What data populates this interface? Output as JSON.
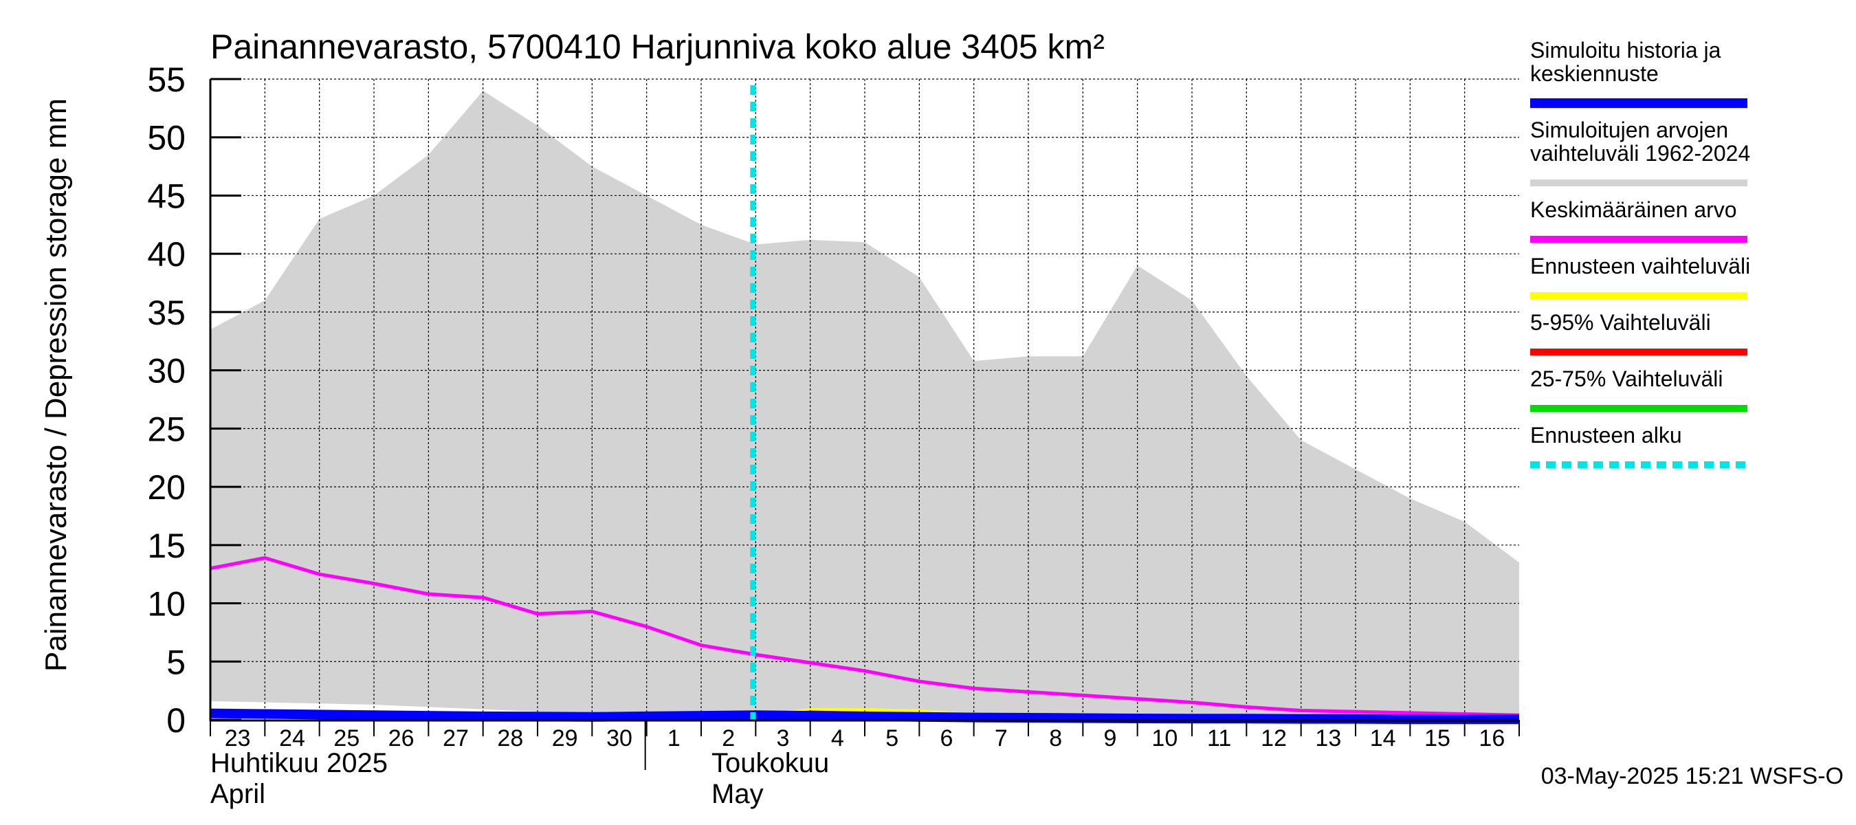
{
  "chart_data": {
    "type": "area",
    "title": "Painannevarasto, 5700410 Harjunniva koko alue 3405 km²",
    "ylabel": "Painannevarasto / Depression storage    mm",
    "ylim": [
      0,
      55
    ],
    "yticks": [
      0,
      5,
      10,
      15,
      20,
      25,
      30,
      35,
      40,
      45,
      50,
      55
    ],
    "grid": true,
    "legend_position": "right",
    "x_day_labels": [
      "23",
      "24",
      "25",
      "26",
      "27",
      "28",
      "29",
      "30",
      "1",
      "2",
      "3",
      "4",
      "5",
      "6",
      "7",
      "8",
      "9",
      "10",
      "11",
      "12",
      "13",
      "14",
      "15",
      "16"
    ],
    "month_labels": [
      {
        "fi": "Huhtikuu  2025",
        "en": "April"
      },
      {
        "fi": "Toukokuu",
        "en": "May"
      }
    ],
    "x_dates": [
      "2025-04-23",
      "2025-04-24",
      "2025-04-25",
      "2025-04-26",
      "2025-04-27",
      "2025-04-28",
      "2025-04-29",
      "2025-04-30",
      "2025-05-01",
      "2025-05-02",
      "2025-05-03",
      "2025-05-04",
      "2025-05-05",
      "2025-05-06",
      "2025-05-07",
      "2025-05-08",
      "2025-05-09",
      "2025-05-10",
      "2025-05-11",
      "2025-05-12",
      "2025-05-13",
      "2025-05-14",
      "2025-05-15",
      "2025-05-16",
      "2025-05-17"
    ],
    "forecast_start": "2025-05-03",
    "series": [
      {
        "name": "Simuloitujen arvojen vaihteluväli 1962-2024",
        "kind": "band",
        "color": "#d3d3d3",
        "upper": [
          33.5,
          36.0,
          43.0,
          45.0,
          48.5,
          54.0,
          51.0,
          47.5,
          45.0,
          42.5,
          40.8,
          41.2,
          41.0,
          38.0,
          30.8,
          31.2,
          31.2,
          39.0,
          36.0,
          29.5,
          24.0,
          21.5,
          19.0,
          17.0,
          13.5
        ],
        "lower": [
          1.6,
          1.5,
          1.4,
          1.3,
          1.1,
          0.9,
          0.7,
          0.5,
          0.4,
          0.4,
          0.3,
          0.3,
          0.3,
          0.3,
          0.3,
          0.3,
          0.3,
          0.3,
          0.3,
          0.3,
          0.3,
          0.3,
          0.3,
          0.3,
          0.3
        ]
      },
      {
        "name": "Keskimääräinen arvo",
        "kind": "line",
        "color": "#ff00ff",
        "values": [
          13.0,
          13.9,
          12.5,
          11.7,
          10.8,
          10.5,
          9.1,
          9.3,
          8.0,
          6.4,
          5.6,
          4.9,
          4.2,
          3.3,
          2.7,
          2.4,
          2.1,
          1.8,
          1.5,
          1.1,
          0.8,
          0.7,
          0.6,
          0.5,
          0.4
        ]
      },
      {
        "name": "Ennusteen vaihteluväli",
        "kind": "forecast_band",
        "color": "#ffff00",
        "start_index": 10,
        "upper": [
          0.5,
          1.0,
          1.0,
          0.9,
          0.6,
          0.3,
          0.2,
          0.15,
          0.1,
          0.1,
          0.1,
          0.1,
          0.1,
          0.1,
          0.1
        ],
        "lower": [
          0.3,
          0.3,
          0.3,
          0.3,
          0.25,
          0.2,
          0.15,
          0.1,
          0.1,
          0.1,
          0.05,
          0.05,
          0.05,
          0.05,
          0.05
        ]
      },
      {
        "name": "5-95% Vaihteluväli",
        "kind": "forecast_band",
        "color": "#ff0000",
        "start_index": 10,
        "upper": [
          0.45,
          0.8,
          0.7,
          0.6,
          0.4,
          0.25,
          0.2,
          0.15,
          0.1,
          0.1,
          0.1,
          0.1,
          0.1,
          0.1,
          0.1
        ],
        "lower": [
          0.3,
          0.3,
          0.3,
          0.3,
          0.25,
          0.2,
          0.15,
          0.1,
          0.1,
          0.1,
          0.05,
          0.05,
          0.05,
          0.05,
          0.05
        ]
      },
      {
        "name": "25-75% Vaihteluväli",
        "kind": "forecast_band",
        "color": "#00dd00",
        "start_index": 10,
        "upper": [
          0.4,
          0.5,
          0.5,
          0.45,
          0.35,
          0.25,
          0.2,
          0.15,
          0.1,
          0.1,
          0.1,
          0.1,
          0.1,
          0.1,
          0.1
        ],
        "lower": [
          0.3,
          0.3,
          0.3,
          0.3,
          0.25,
          0.2,
          0.15,
          0.1,
          0.1,
          0.1,
          0.05,
          0.05,
          0.05,
          0.05,
          0.05
        ]
      },
      {
        "name": "Simuloitu historia ja keskiennuste",
        "kind": "line",
        "color": "#0000ff",
        "values": [
          0.55,
          0.5,
          0.45,
          0.4,
          0.35,
          0.3,
          0.28,
          0.25,
          0.3,
          0.35,
          0.4,
          0.35,
          0.3,
          0.25,
          0.2,
          0.18,
          0.15,
          0.12,
          0.1,
          0.1,
          0.08,
          0.08,
          0.05,
          0.05,
          0.05
        ]
      }
    ],
    "legend": [
      {
        "label_lines": [
          "Simuloitu historia ja",
          "keskiennuste"
        ],
        "color": "#0000ff",
        "style": "solid"
      },
      {
        "label_lines": [
          "Simuloitujen arvojen",
          "vaihteluväli 1962-2024"
        ],
        "color": "#d3d3d3",
        "style": "solid"
      },
      {
        "label_lines": [
          "Keskimääräinen arvo"
        ],
        "color": "#ff00ff",
        "style": "solid"
      },
      {
        "label_lines": [
          "Ennusteen vaihteluväli"
        ],
        "color": "#ffff00",
        "style": "solid"
      },
      {
        "label_lines": [
          "5-95% Vaihteluväli"
        ],
        "color": "#ff0000",
        "style": "solid"
      },
      {
        "label_lines": [
          "25-75% Vaihteluväli"
        ],
        "color": "#00dd00",
        "style": "solid"
      },
      {
        "label_lines": [
          "Ennusteen alku"
        ],
        "color": "#00e5e5",
        "style": "dashed"
      }
    ],
    "timestamp": "03-May-2025 15:21 WSFS-O"
  }
}
